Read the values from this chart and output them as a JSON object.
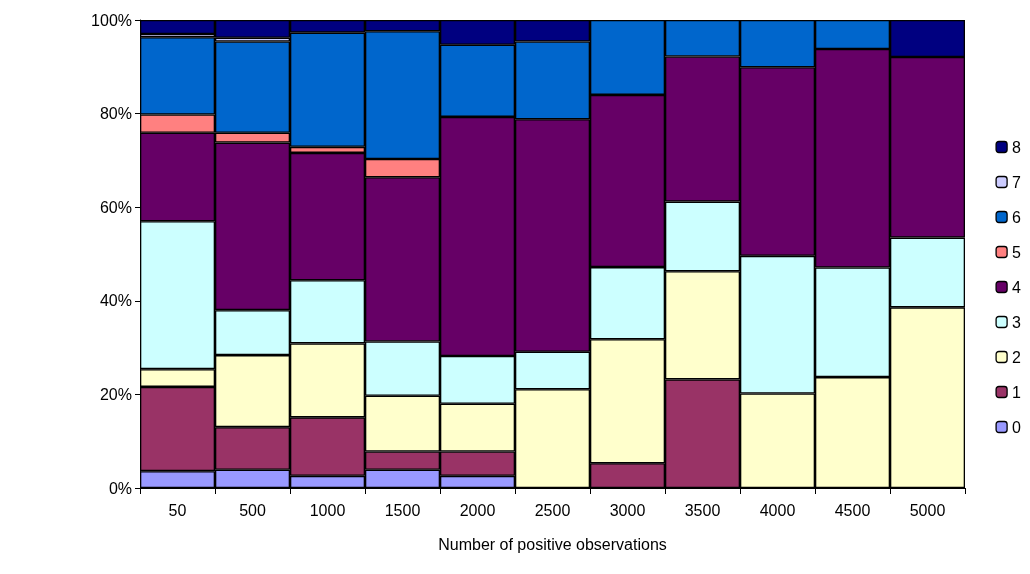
{
  "chart_data": {
    "type": "bar",
    "stacked": true,
    "xlabel": "Number of positive observations",
    "categories": [
      "50",
      "500",
      "1000",
      "1500",
      "2000",
      "2500",
      "3000",
      "3500",
      "4000",
      "4500",
      "5000"
    ],
    "series": [
      {
        "name": "0",
        "color": "#9999ff",
        "values": [
          3.6,
          3.9,
          2.6,
          3.9,
          2.6,
          0,
          0,
          0,
          0,
          0,
          0
        ]
      },
      {
        "name": "1",
        "color": "#993366",
        "values": [
          18,
          9.1,
          12.5,
          3.9,
          5.2,
          0,
          5.3,
          23.2,
          0,
          0,
          0
        ]
      },
      {
        "name": "2",
        "color": "#ffffcc",
        "values": [
          3.8,
          15.4,
          15.8,
          11.9,
          10.2,
          21.1,
          26.5,
          23.1,
          20.2,
          23.7,
          38.6
        ]
      },
      {
        "name": "3",
        "color": "#ccffff",
        "values": [
          31.6,
          9.6,
          13.5,
          11.6,
          10.2,
          8,
          15.4,
          14.9,
          29.4,
          23.4,
          14.9
        ]
      },
      {
        "name": "4",
        "color": "#660066",
        "values": [
          18.9,
          35.8,
          27.2,
          35.1,
          51.1,
          49.7,
          36.8,
          31,
          40.3,
          46.7,
          38.6
        ]
      },
      {
        "name": "5",
        "color": "#ff8080",
        "values": [
          3.9,
          2.1,
          1.3,
          3.9,
          0,
          0,
          0,
          0,
          0,
          0,
          0
        ]
      },
      {
        "name": "6",
        "color": "#0066cc",
        "values": [
          16.5,
          19.5,
          24.4,
          27.3,
          15.4,
          16.6,
          16,
          7.8,
          10.1,
          6.2,
          0
        ]
      },
      {
        "name": "7",
        "color": "#ccccff",
        "values": [
          0.7,
          0.8,
          0,
          0,
          0,
          0,
          0,
          0,
          0,
          0,
          0
        ]
      },
      {
        "name": "8",
        "color": "#000080",
        "values": [
          3,
          3.8,
          2.7,
          2.4,
          5.3,
          4.6,
          0,
          0,
          0,
          0,
          7.9
        ]
      }
    ],
    "ylim": [
      0,
      100
    ],
    "yticks": [
      {
        "value": 0,
        "label": "0%"
      },
      {
        "value": 20,
        "label": "20%"
      },
      {
        "value": 40,
        "label": "40%"
      },
      {
        "value": 60,
        "label": "60%"
      },
      {
        "value": 80,
        "label": "80%"
      },
      {
        "value": 100,
        "label": "100%"
      }
    ],
    "legend": "right",
    "grid": false
  }
}
